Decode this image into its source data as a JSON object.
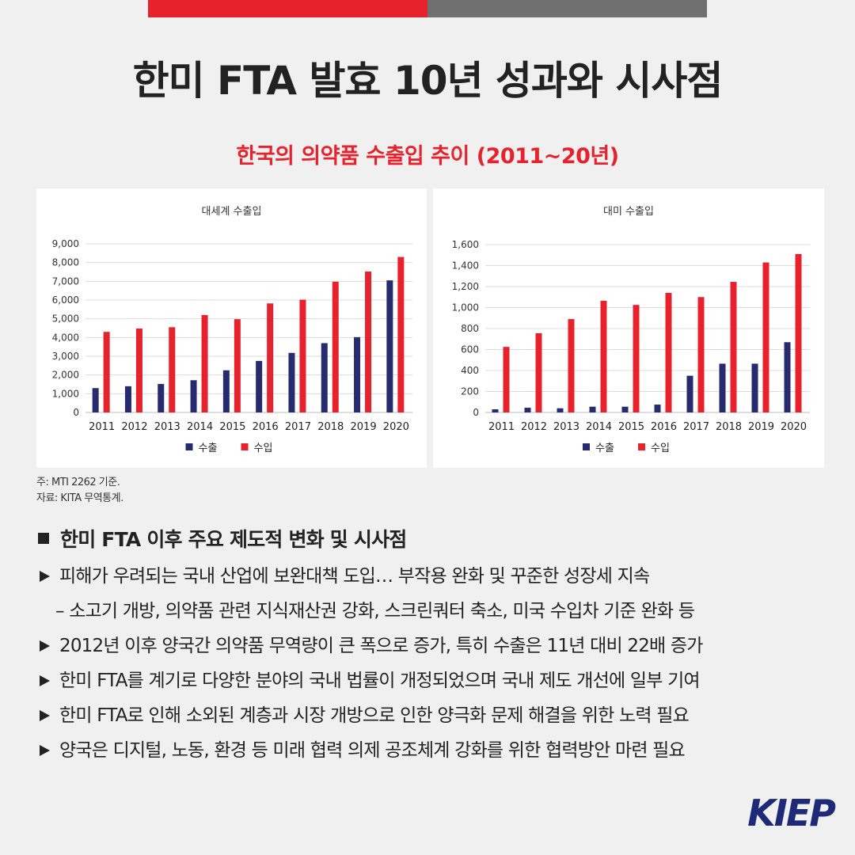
{
  "title": "한미 FTA 발효 10년 성과와 시사점",
  "figure_title": "한국의 의약품 수출입 추이 (2011~20년)",
  "colors": {
    "export": "#262a6e",
    "import": "#e8222d",
    "accent": "#e8222d"
  },
  "chart_data": [
    {
      "type": "bar",
      "title": "대세계 수출입",
      "categories": [
        "2011",
        "2012",
        "2013",
        "2014",
        "2015",
        "2016",
        "2017",
        "2018",
        "2019",
        "2020"
      ],
      "ylim": [
        0,
        9000
      ],
      "yticks": [
        0,
        1000,
        2000,
        3000,
        4000,
        5000,
        6000,
        7000,
        8000,
        9000
      ],
      "ytick_labels": [
        "0",
        "1,000",
        "2,000",
        "3,000",
        "4,000",
        "5,000",
        "6,000",
        "7,000",
        "8,000",
        "9,000"
      ],
      "grid": true,
      "legend_position": "bottom",
      "series": [
        {
          "name": "수출",
          "values": [
            1300,
            1400,
            1520,
            1720,
            2250,
            2750,
            3180,
            3700,
            4020,
            7050
          ]
        },
        {
          "name": "수입",
          "values": [
            4300,
            4480,
            4550,
            5200,
            4980,
            5820,
            6020,
            6980,
            7520,
            8300
          ]
        }
      ]
    },
    {
      "type": "bar",
      "title": "대미 수출입",
      "categories": [
        "2011",
        "2012",
        "2013",
        "2014",
        "2015",
        "2016",
        "2017",
        "2018",
        "2019",
        "2020"
      ],
      "ylim": [
        0,
        1600
      ],
      "yticks": [
        0,
        200,
        400,
        600,
        800,
        1000,
        1200,
        1400,
        1600
      ],
      "ytick_labels": [
        "0",
        "200",
        "400",
        "600",
        "800",
        "1,000",
        "1,200",
        "1,400",
        "1,600"
      ],
      "grid": true,
      "legend_position": "bottom",
      "series": [
        {
          "name": "수출",
          "values": [
            30,
            45,
            40,
            55,
            55,
            75,
            350,
            465,
            465,
            670
          ]
        },
        {
          "name": "수입",
          "values": [
            625,
            755,
            890,
            1065,
            1025,
            1140,
            1100,
            1245,
            1430,
            1510
          ]
        }
      ]
    }
  ],
  "notes": [
    "주: MTI 2262 기준.",
    "자료: KITA 무역통계."
  ],
  "section": {
    "heading": "한미 FTA 이후 주요 제도적 변화 및 시사점",
    "bullet1": "피해가 우려되는 국내 산업에 보완대책 도입… 부작용 완화 및 꾸준한 성장세 지속",
    "sub1": "– 소고기 개방, 의약품 관련 지식재산권 강화, 스크린쿼터 축소, 미국 수입차 기준 완화 등",
    "bullet2": "2012년 이후 양국간 의약품 무역량이 큰 폭으로 증가, 특히 수출은 11년 대비 22배 증가",
    "bullet3": "한미 FTA를 계기로 다양한 분야의 국내 법률이 개정되었으며 국내 제도 개선에 일부 기여",
    "bullet4": "한미 FTA로 인해 소외된 계층과 시장 개방으로 인한 양극화 문제 해결을 위한 노력 필요",
    "bullet5": "양국은 디지털, 노동, 환경 등 미래 협력 의제 공조체계 강화를 위한 협력방안 마련 필요"
  },
  "logo": "KIEP"
}
